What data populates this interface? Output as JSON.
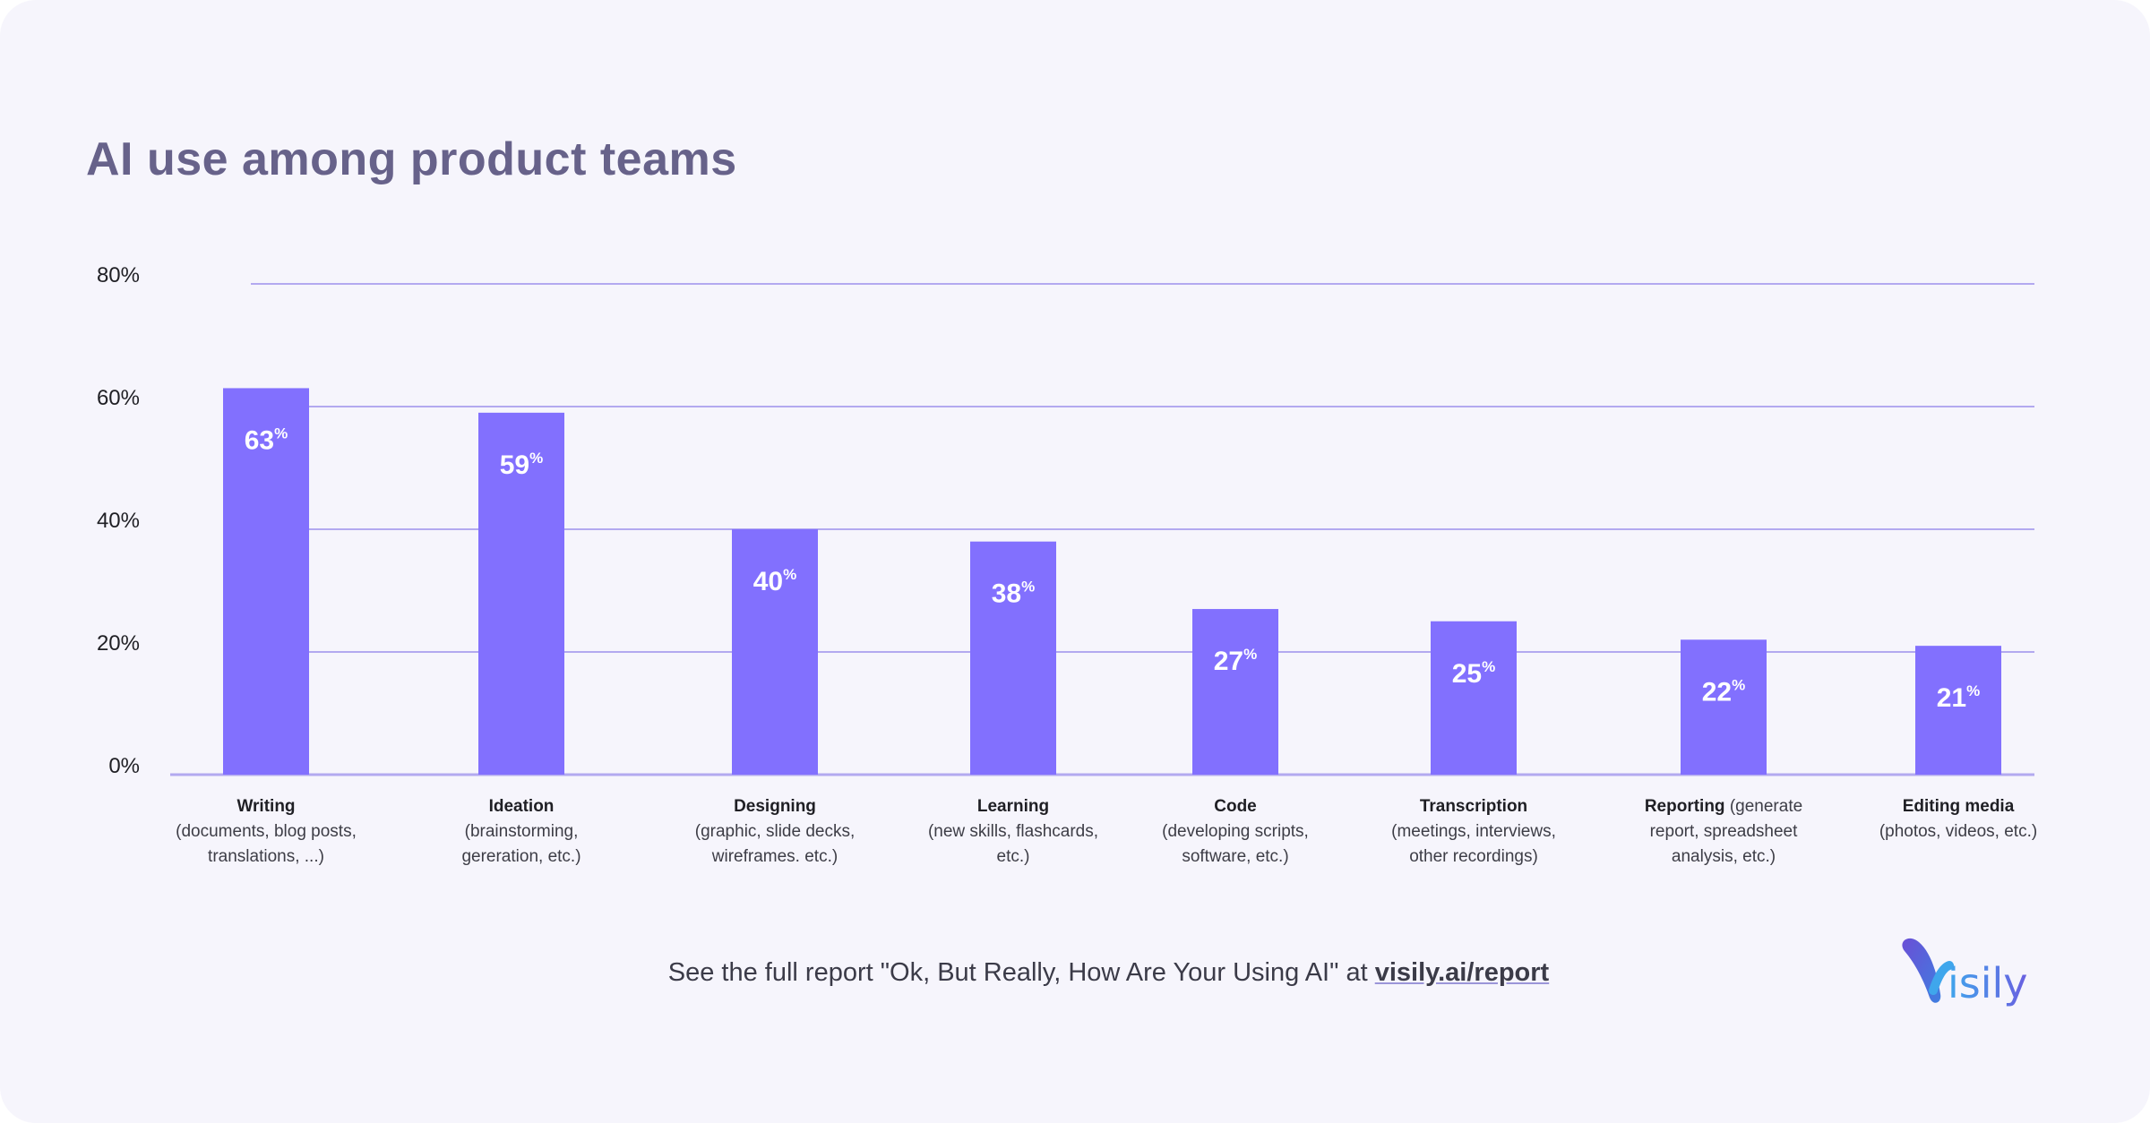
{
  "chart_data": {
    "type": "bar",
    "title": "AI use among product teams",
    "categories": [
      {
        "name": "Writing",
        "desc": "(documents, blog posts, translations, ...)",
        "inline": false
      },
      {
        "name": "Ideation",
        "desc": "(brainstorming, gereration, etc.)",
        "inline": false
      },
      {
        "name": "Designing",
        "desc": "(graphic, slide decks, wireframes. etc.)",
        "inline": false
      },
      {
        "name": "Learning",
        "desc": "(new skills, flashcards, etc.)",
        "inline": false
      },
      {
        "name": "Code",
        "desc": "(developing scripts, software, etc.)",
        "inline": false
      },
      {
        "name": "Transcription",
        "desc": "(meetings, interviews, other recordings)",
        "inline": false
      },
      {
        "name": "Reporting",
        "desc": "(generate report, spreadsheet analysis, etc.)",
        "inline": true
      },
      {
        "name": "Editing media",
        "desc": "(photos, videos, etc.)",
        "inline": false
      }
    ],
    "values": [
      63,
      59,
      40,
      38,
      27,
      25,
      22,
      21
    ],
    "value_suffix": "%",
    "yticks": [
      "0%",
      "20%",
      "40%",
      "60%",
      "80%"
    ],
    "ytick_values": [
      0,
      20,
      40,
      60,
      80
    ],
    "ylim": [
      0,
      80
    ],
    "grid": true,
    "bar_color": "#8270fe",
    "grid_color": "#b3a9f0"
  },
  "footer": {
    "text": "See the full report \"Ok, But Really, How Are Your Using AI\" at ",
    "link": "visily.ai/report"
  },
  "logo": {
    "text": "Visily"
  }
}
